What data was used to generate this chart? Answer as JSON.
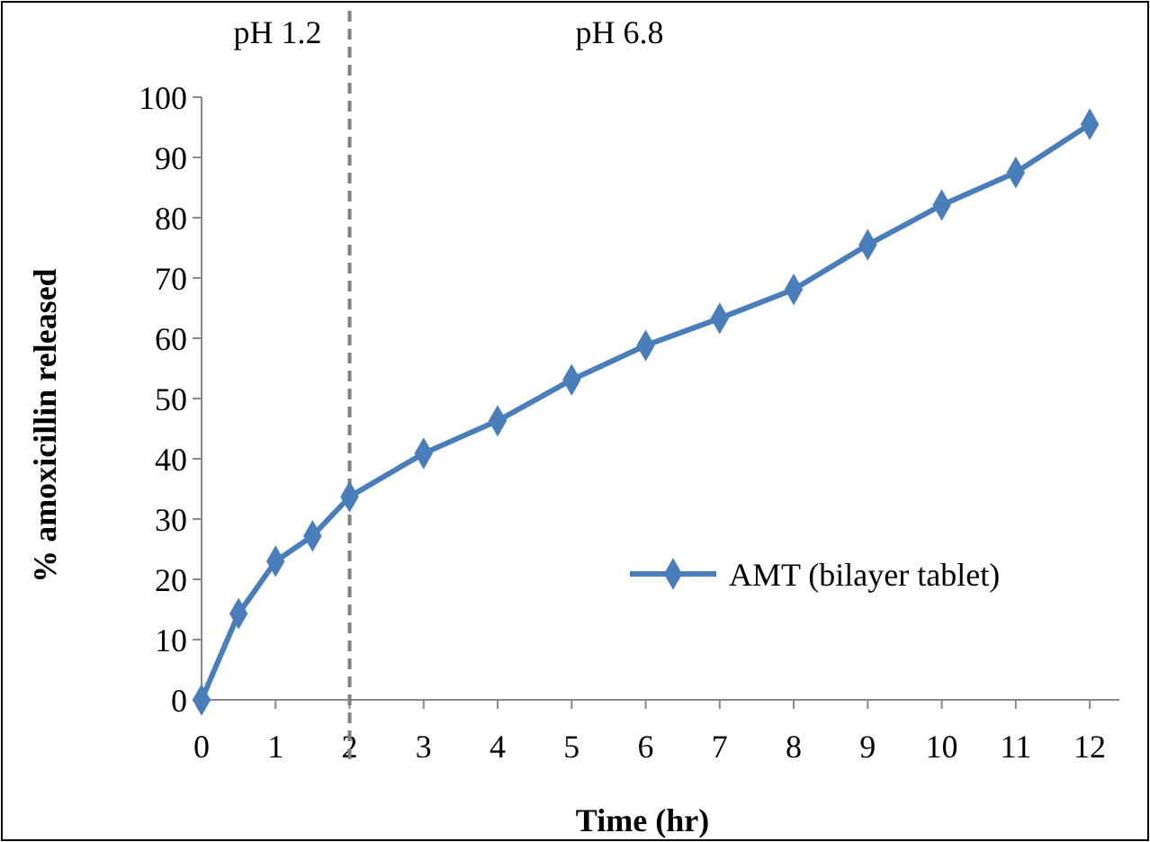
{
  "chart_data": {
    "type": "line",
    "xlabel": "Time (hr)",
    "ylabel": "% amoxicillin released",
    "annotations": [
      "pH 1.2",
      "pH 6.8"
    ],
    "x": [
      0,
      0.5,
      1,
      1.5,
      2,
      3,
      4,
      5,
      6,
      7,
      8,
      9,
      10,
      11,
      12
    ],
    "series": [
      {
        "name": "AMT (bilayer tablet)",
        "color": "#4a7ebb",
        "values": [
          0,
          14.3,
          23,
          27.2,
          33.7,
          40.9,
          46.3,
          53.1,
          58.8,
          63.3,
          68.1,
          75.5,
          82.1,
          87.5,
          95.5
        ]
      }
    ],
    "xlim": [
      0,
      12.4
    ],
    "xticks": [
      0,
      1,
      2,
      3,
      4,
      5,
      6,
      7,
      8,
      9,
      10,
      11,
      12
    ],
    "ylim": [
      0,
      100
    ],
    "yticks": [
      0,
      10,
      20,
      30,
      40,
      50,
      60,
      70,
      80,
      90,
      100
    ],
    "ref_lines": [
      {
        "axis": "x",
        "value": 2,
        "color": "#7f7f7f",
        "line_style": "dashed"
      }
    ],
    "legend": "right",
    "marker": "diamond",
    "line_style": "solid"
  }
}
